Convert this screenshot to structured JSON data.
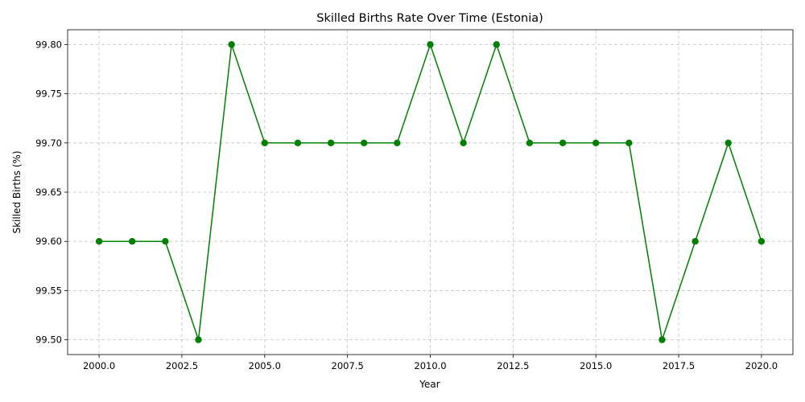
{
  "chart_data": {
    "type": "line",
    "title": "Skilled Births Rate Over Time (Estonia)",
    "xlabel": "Year",
    "ylabel": "Skilled Births (%)",
    "xlim": [
      1999.05,
      2020.95
    ],
    "ylim": [
      99.485,
      99.815
    ],
    "x_ticks": [
      2000.0,
      2002.5,
      2005.0,
      2007.5,
      2010.0,
      2012.5,
      2015.0,
      2017.5,
      2020.0
    ],
    "x_tick_labels": [
      "2000.0",
      "2002.5",
      "2005.0",
      "2007.5",
      "2010.0",
      "2012.5",
      "2015.0",
      "2017.5",
      "2020.0"
    ],
    "y_ticks": [
      99.5,
      99.55,
      99.6,
      99.65,
      99.7,
      99.75,
      99.8
    ],
    "y_tick_labels": [
      "99.50",
      "99.55",
      "99.60",
      "99.65",
      "99.70",
      "99.75",
      "99.80"
    ],
    "grid": true,
    "series": [
      {
        "color": "#008000",
        "marker": "circle",
        "x": [
          2000,
          2001,
          2002,
          2003,
          2004,
          2005,
          2006,
          2007,
          2008,
          2009,
          2010,
          2011,
          2012,
          2013,
          2014,
          2015,
          2016,
          2017,
          2018,
          2019,
          2020
        ],
        "y": [
          99.6,
          99.6,
          99.6,
          99.5,
          99.8,
          99.7,
          99.7,
          99.7,
          99.7,
          99.7,
          99.8,
          99.7,
          99.8,
          99.7,
          99.7,
          99.7,
          99.7,
          99.5,
          99.6,
          99.7,
          99.6
        ]
      }
    ]
  }
}
